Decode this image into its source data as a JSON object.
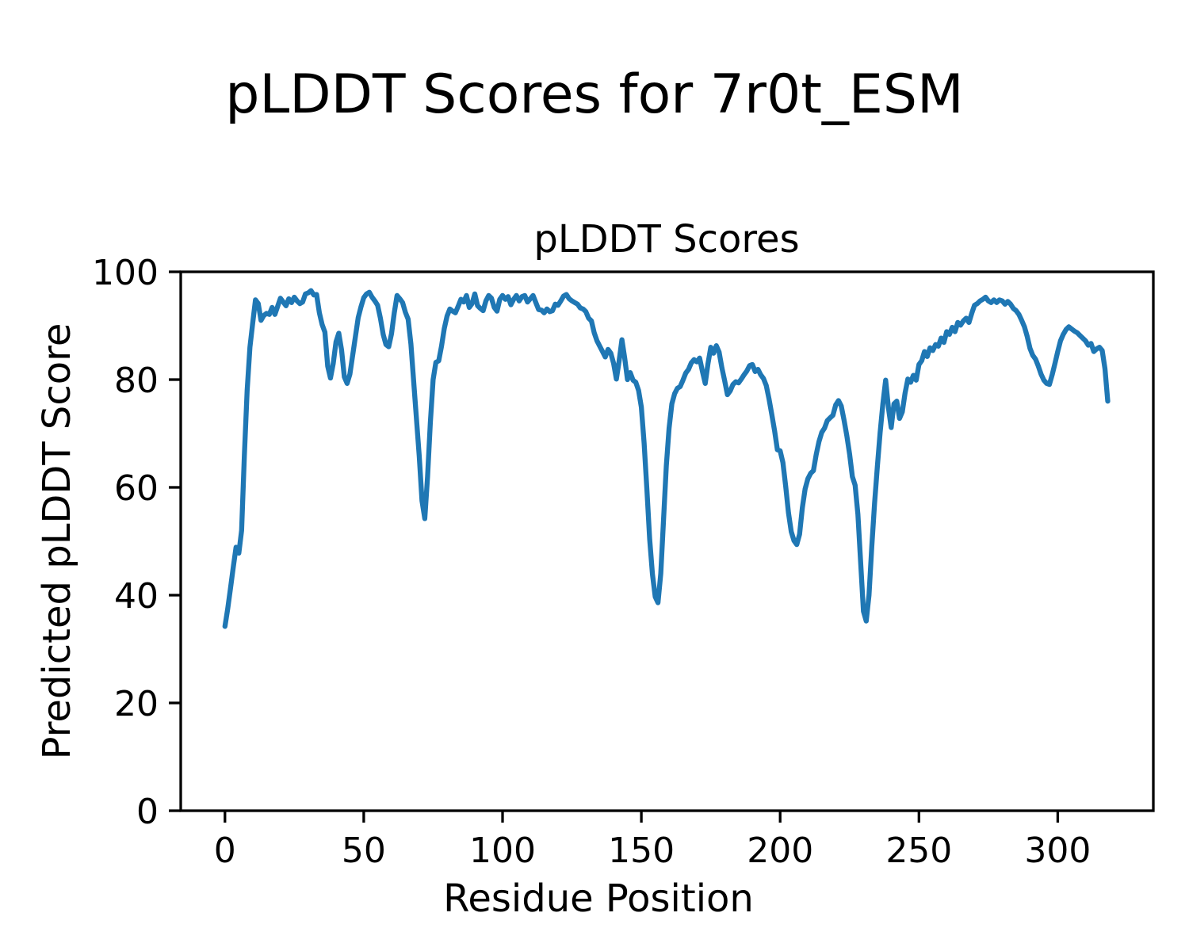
{
  "figure": {
    "suptitle": "pLDDT Scores for 7r0t_ESM",
    "background_color": "#ffffff"
  },
  "axes": {
    "title": "pLDDT Scores",
    "xlabel": "Residue Position",
    "ylabel": "Predicted pLDDT Score",
    "xtick_labels": [
      "0",
      "50",
      "100",
      "150",
      "200",
      "250",
      "300"
    ],
    "ytick_labels": [
      "0",
      "20",
      "40",
      "60",
      "80",
      "100"
    ]
  },
  "chart_data": {
    "type": "line",
    "title": "pLDDT Scores",
    "xlabel": "Residue Position",
    "ylabel": "Predicted pLDDT Score",
    "line_color": "#1f77b4",
    "line_width": 6.3,
    "grid": false,
    "legend": "none",
    "xlim": [
      -15.93,
      334.43
    ],
    "ylim": [
      0,
      100
    ],
    "xticks": [
      0,
      50,
      100,
      150,
      200,
      250,
      300
    ],
    "yticks": [
      0,
      20,
      40,
      60,
      80,
      100
    ],
    "x_start": 0,
    "x_step": 1,
    "series": [
      {
        "name": "pLDDT",
        "values": [
          34.2,
          37.5,
          41.3,
          45.2,
          48.9,
          47.8,
          52,
          66,
          78,
          86,
          90.5,
          94.8,
          94.1,
          91,
          91.9,
          92.3,
          92.1,
          93.4,
          92.1,
          93.6,
          95.1,
          94.4,
          93.7,
          95,
          94.3,
          95.3,
          94.6,
          94.1,
          94.4,
          95.9,
          96.1,
          96.5,
          95.7,
          95.8,
          92.4,
          90.2,
          88.8,
          82.5,
          80.3,
          83,
          87,
          88.6,
          85.5,
          80.5,
          79.3,
          81,
          84.5,
          88,
          91.5,
          93.5,
          95.2,
          95.9,
          96.2,
          95.3,
          94.6,
          93.8,
          91.4,
          88.4,
          86.5,
          86.1,
          88.5,
          92.4,
          95.6,
          95,
          94.3,
          92.5,
          91.2,
          86.6,
          79.6,
          72.7,
          65.8,
          57.5,
          54.2,
          62,
          72,
          80,
          83.2,
          83.5,
          86.2,
          89.5,
          91.8,
          93.1,
          92.7,
          92.4,
          93.6,
          94.9,
          94.4,
          95.6,
          93.4,
          94.1,
          95.9,
          93.7,
          93.2,
          92.8,
          94.6,
          95.6,
          95.1,
          93.4,
          92.7,
          94.9,
          95.6,
          94.9,
          95.4,
          93.9,
          94.9,
          95.6,
          94.6,
          95.4,
          95.6,
          94.4,
          95,
          95.6,
          94.3,
          93,
          92.9,
          92.4,
          93.1,
          92.6,
          92.8,
          94,
          93.8,
          94.6,
          95.5,
          95.8,
          95,
          94.6,
          94.3,
          94,
          93.3,
          93.1,
          92.6,
          91.4,
          90.9,
          88.7,
          87.2,
          86.2,
          85.2,
          84.2,
          85.6,
          84.9,
          83,
          80.1,
          83.5,
          87.4,
          84,
          80,
          81.3,
          79.9,
          79.5,
          78,
          74.9,
          68.2,
          59.6,
          50.4,
          43.9,
          39.7,
          38.6,
          44,
          54,
          64,
          71,
          75.5,
          77.4,
          78.4,
          78.7,
          79.9,
          81.2,
          81.9,
          83.1,
          83.7,
          83.3,
          84,
          81.5,
          79.3,
          83,
          86,
          84.9,
          86.3,
          85.1,
          82.2,
          79.8,
          77.2,
          77.9,
          79.1,
          79.6,
          79.4,
          80.1,
          80.9,
          81.6,
          82.6,
          82.8,
          81.5,
          81.9,
          80.9,
          80.2,
          78.9,
          76.4,
          73.5,
          70.5,
          67,
          66.8,
          64.6,
          60.2,
          55.3,
          51.8,
          50.1,
          49.4,
          51.3,
          56.2,
          59.7,
          61.6,
          62.6,
          63.1,
          66.1,
          68.5,
          70.2,
          71,
          72.4,
          72.9,
          73.4,
          75.3,
          76.1,
          75.1,
          72.5,
          69.6,
          66.2,
          62,
          60.4,
          55,
          46,
          37,
          35.2,
          40,
          49,
          57,
          63.8,
          70.1,
          75.5,
          79.9,
          74.8,
          71.1,
          75.5,
          76,
          72.8,
          74,
          77.5,
          80.1,
          79.5,
          80.8,
          79.9,
          82.8,
          83.5,
          85.2,
          84.3,
          85.9,
          85.4,
          86.5,
          86.2,
          87.7,
          86.9,
          88.9,
          88.4,
          89.7,
          88.9,
          90.6,
          90.1,
          90.9,
          91.4,
          90.6,
          92.3,
          93.8,
          94.1,
          94.6,
          94.9,
          95.3,
          94.6,
          94.3,
          94.8,
          94.3,
          94.8,
          94.6,
          94,
          94.5,
          94,
          93.2,
          92.8,
          92.1,
          91,
          89.8,
          88,
          85.8,
          84.5,
          83.8,
          82.5,
          81,
          79.9,
          79.3,
          79.1,
          80.9,
          83,
          85.2,
          87.2,
          88.4,
          89.3,
          89.8,
          89.4,
          89,
          88.7,
          88.2,
          87.7,
          87.2,
          86.4,
          86.7,
          85.2,
          85.7,
          86,
          85.4,
          82,
          76
        ]
      }
    ]
  }
}
